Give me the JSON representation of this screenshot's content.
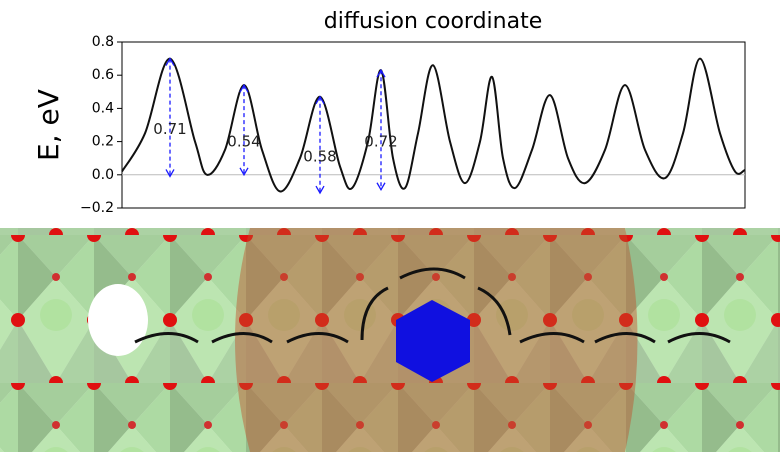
{
  "chart_data": {
    "type": "line",
    "title": "diffusion coordinate",
    "y_label": "E, eV",
    "xlim": [
      0,
      623
    ],
    "ylim": [
      -0.2,
      0.8
    ],
    "yticks": [
      {
        "value": -0.2,
        "label": "−0.2"
      },
      {
        "value": 0,
        "label": "0.0"
      },
      0.2,
      0.4,
      0.6,
      0.8
    ],
    "x": [
      0,
      23,
      48,
      73,
      85,
      103,
      122,
      140,
      158,
      178,
      198,
      218,
      230,
      246,
      259,
      271,
      283,
      296,
      311,
      328,
      343,
      358,
      370,
      381,
      393,
      410,
      428,
      446,
      463,
      483,
      503,
      523,
      543,
      561,
      578,
      598,
      613,
      623
    ],
    "series": [
      {
        "color": "#111111",
        "values": [
          0.02,
          0.25,
          0.7,
          0.2,
          0.0,
          0.15,
          0.54,
          0.15,
          -0.1,
          0.1,
          0.47,
          0.05,
          -0.08,
          0.2,
          0.63,
          0.1,
          -0.08,
          0.25,
          0.66,
          0.2,
          -0.05,
          0.2,
          0.59,
          0.1,
          -0.08,
          0.15,
          0.48,
          0.1,
          -0.05,
          0.15,
          0.54,
          0.15,
          -0.02,
          0.25,
          0.7,
          0.25,
          0.02,
          0.03
        ]
      }
    ],
    "annotations": [
      {
        "label": "0.71",
        "x": 48,
        "top": 0.7,
        "bottom": -0.01,
        "color": "#1a1aff"
      },
      {
        "label": "0.54",
        "x": 122,
        "top": 0.54,
        "bottom": 0.0,
        "color": "#1a1aff"
      },
      {
        "label": "0.58",
        "x": 198,
        "top": 0.47,
        "bottom": -0.11,
        "color": "#1a1aff"
      },
      {
        "label": "0.72",
        "x": 259,
        "top": 0.63,
        "bottom": -0.09,
        "color": "#1a1aff"
      }
    ]
  }
}
